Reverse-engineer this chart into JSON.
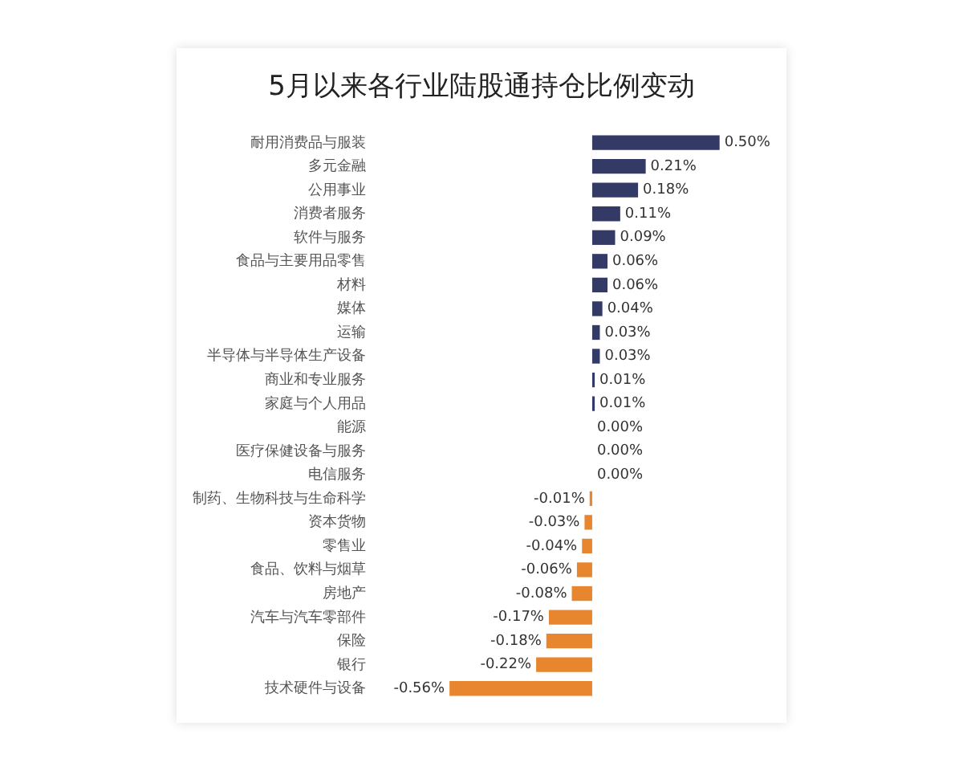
{
  "chart_data": {
    "type": "bar",
    "orientation": "horizontal",
    "title": "5月以来各行业陆股通持仓比例变动",
    "categories": [
      "耐用消费品与服装",
      "多元金融",
      "公用事业",
      "消费者服务",
      "软件与服务",
      "食品与主要用品零售",
      "材料",
      "媒体",
      "运输",
      "半导体与半导体生产设备",
      "商业和专业服务",
      "家庭与个人用品",
      "能源",
      "医疗保健设备与服务",
      "电信服务",
      "制药、生物科技与生命科学",
      "资本货物",
      "零售业",
      "食品、饮料与烟草",
      "房地产",
      "汽车与汽车零部件",
      "保险",
      "银行",
      "技术硬件与设备"
    ],
    "values": [
      0.5,
      0.21,
      0.18,
      0.11,
      0.09,
      0.06,
      0.06,
      0.04,
      0.03,
      0.03,
      0.01,
      0.01,
      0.0,
      0.0,
      0.0,
      -0.01,
      -0.03,
      -0.04,
      -0.06,
      -0.08,
      -0.17,
      -0.18,
      -0.22,
      -0.56
    ],
    "value_labels": [
      "0.50%",
      "0.21%",
      "0.18%",
      "0.11%",
      "0.09%",
      "0.06%",
      "0.06%",
      "0.04%",
      "0.03%",
      "0.03%",
      "0.01%",
      "0.01%",
      "0.00%",
      "0.00%",
      "0.00%",
      "-0.01%",
      "-0.03%",
      "-0.04%",
      "-0.06%",
      "-0.08%",
      "-0.17%",
      "-0.18%",
      "-0.22%",
      "-0.56%"
    ],
    "colors": [
      "#343a66",
      "#343a66",
      "#343a66",
      "#343a66",
      "#343a66",
      "#343a66",
      "#343a66",
      "#343a66",
      "#343a66",
      "#343a66",
      "#343a66",
      "#343a66",
      "#343a66",
      "#343a66",
      "#343a66",
      "#e8862f",
      "#e8862f",
      "#e8862f",
      "#e8862f",
      "#e8862f",
      "#e8862f",
      "#e8862f",
      "#e8862f",
      "#e8862f"
    ],
    "legend": false
  }
}
